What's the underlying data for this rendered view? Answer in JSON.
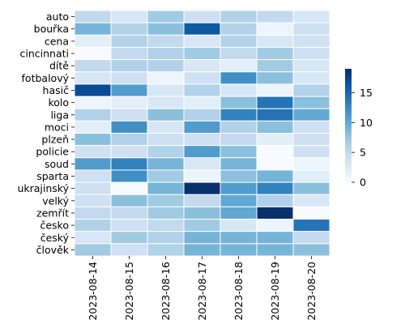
{
  "chart_data": {
    "type": "heatmap",
    "title": "",
    "xlabel": "",
    "ylabel": "",
    "x_categories": [
      "2023-08-14",
      "2023-08-15",
      "2023-08-16",
      "2023-08-17",
      "2023-08-18",
      "2023-08-19",
      "2023-08-20"
    ],
    "y_categories": [
      "auto",
      "bouřka",
      "cena",
      "cincinnati",
      "dítě",
      "fotbalový",
      "hasič",
      "kolo",
      "liga",
      "moci",
      "plzeň",
      "policie",
      "soud",
      "sparta",
      "ukrajinský",
      "velký",
      "zemřít",
      "česko",
      "český",
      "člověk"
    ],
    "values": [
      [
        5,
        3,
        7,
        4,
        6,
        5,
        3
      ],
      [
        9,
        6,
        8,
        16,
        6,
        1,
        4
      ],
      [
        2,
        6,
        5,
        3,
        6,
        3,
        4
      ],
      [
        0,
        5,
        6,
        7,
        5,
        7,
        4
      ],
      [
        5,
        6,
        6,
        3,
        2,
        7,
        3
      ],
      [
        3,
        4,
        1,
        4,
        12,
        8,
        3
      ],
      [
        17,
        11,
        3,
        6,
        3,
        1,
        6
      ],
      [
        1,
        2,
        3,
        2,
        8,
        14,
        8
      ],
      [
        6,
        4,
        8,
        6,
        13,
        14,
        10
      ],
      [
        2,
        12,
        3,
        11,
        6,
        8,
        4
      ],
      [
        8,
        6,
        4,
        4,
        5,
        2,
        4
      ],
      [
        4,
        4,
        6,
        11,
        8,
        0,
        4
      ],
      [
        11,
        13,
        9,
        3,
        9,
        0,
        1
      ],
      [
        4,
        12,
        7,
        1,
        8,
        9,
        2
      ],
      [
        4,
        0,
        9,
        19,
        11,
        13,
        8
      ],
      [
        4,
        8,
        7,
        5,
        10,
        6,
        3
      ],
      [
        5,
        5,
        7,
        8,
        10,
        19,
        0
      ],
      [
        6,
        4,
        5,
        7,
        3,
        1,
        14
      ],
      [
        3,
        7,
        6,
        9,
        9,
        9,
        5
      ],
      [
        7,
        4,
        6,
        9,
        9,
        9,
        8
      ]
    ],
    "colorbar": {
      "min": 0,
      "max": 19,
      "ticks": [
        0,
        5,
        10,
        15
      ],
      "colormap": "Blues",
      "colors": [
        "#f7fbff",
        "#deebf7",
        "#c6dbef",
        "#9ecae1",
        "#6baed6",
        "#4292c6",
        "#2171b5",
        "#08519c",
        "#08306b"
      ]
    },
    "grid": true,
    "cell_border_color": "#ffffff"
  }
}
